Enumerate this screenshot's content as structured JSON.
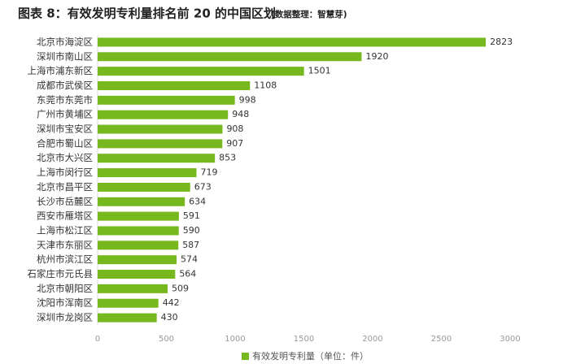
{
  "chart_data": {
    "type": "bar",
    "orientation": "horizontal",
    "title": "图表 8：有效发明专利量排名前 20 的中国区划",
    "subtitle": "(数据整理：智慧芽)",
    "categories": [
      "北京市海淀区",
      "深圳市南山区",
      "上海市浦东新区",
      "成都市武侯区",
      "东莞市东莞市",
      "广州市黄埔区",
      "深圳市宝安区",
      "合肥市蜀山区",
      "北京市大兴区",
      "上海市闵行区",
      "北京市昌平区",
      "长沙市岳麓区",
      "西安市雁塔区",
      "上海市松江区",
      "天津市东丽区",
      "杭州市滨江区",
      "石家庄市元氏县",
      "北京市朝阳区",
      "沈阳市浑南区",
      "深圳市龙岗区"
    ],
    "series": [
      {
        "name": "有效发明专利量（单位：件）",
        "color": "#77b81e",
        "values": [
          2823,
          1920,
          1501,
          1108,
          998,
          948,
          908,
          907,
          853,
          719,
          673,
          634,
          591,
          590,
          587,
          574,
          564,
          509,
          442,
          430
        ]
      }
    ],
    "xlim": [
      0,
      3000
    ],
    "xticks": [
      0,
      500,
      1000,
      1500,
      2000,
      2500,
      3000
    ],
    "grid": false,
    "legend": "bottom"
  }
}
